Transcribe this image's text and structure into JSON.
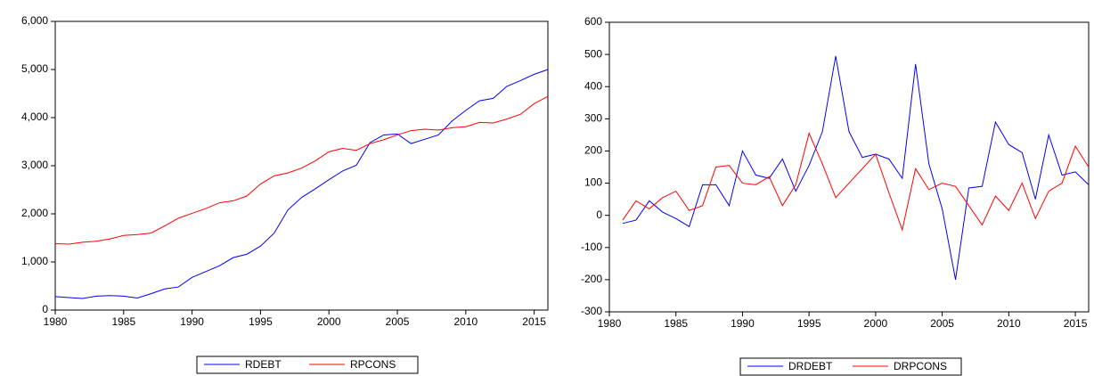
{
  "chart_data": [
    {
      "type": "line",
      "x": [
        1980,
        1981,
        1982,
        1983,
        1984,
        1985,
        1986,
        1987,
        1988,
        1989,
        1990,
        1991,
        1992,
        1993,
        1994,
        1995,
        1996,
        1997,
        1998,
        1999,
        2000,
        2001,
        2002,
        2003,
        2004,
        2005,
        2006,
        2007,
        2008,
        2009,
        2010,
        2011,
        2012,
        2013,
        2014,
        2015,
        2016
      ],
      "series": [
        {
          "name": "RDEBT",
          "color": "#0000ff",
          "values": [
            280,
            260,
            240,
            290,
            300,
            290,
            250,
            340,
            440,
            480,
            680,
            800,
            920,
            1090,
            1160,
            1330,
            1600,
            2080,
            2340,
            2520,
            2710,
            2890,
            3010,
            3480,
            3640,
            3660,
            3460,
            3550,
            3640,
            3930,
            4150,
            4350,
            4400,
            4650,
            4770,
            4900,
            5000
          ]
        },
        {
          "name": "RPCONS",
          "color": "#ff0000",
          "values": [
            1380,
            1370,
            1410,
            1430,
            1480,
            1550,
            1570,
            1600,
            1750,
            1910,
            2010,
            2110,
            2230,
            2270,
            2370,
            2620,
            2790,
            2850,
            2950,
            3100,
            3290,
            3360,
            3320,
            3460,
            3540,
            3640,
            3730,
            3760,
            3740,
            3790,
            3810,
            3900,
            3890,
            3970,
            4070,
            4290,
            4440
          ]
        }
      ],
      "xlim": [
        1980,
        2016
      ],
      "xticks": [
        1980,
        1985,
        1990,
        1995,
        2000,
        2005,
        2010,
        2015
      ],
      "ylim": [
        0,
        6000
      ],
      "yticks": [
        0,
        {
          "value": 1000,
          "label": "1,000"
        },
        {
          "value": 2000,
          "label": "2,000"
        },
        {
          "value": 3000,
          "label": "3,000"
        },
        {
          "value": 4000,
          "label": "4,000"
        },
        {
          "value": 5000,
          "label": "5,000"
        },
        {
          "value": 6000,
          "label": "6,000"
        }
      ],
      "grid": false
    },
    {
      "type": "line",
      "x": [
        1981,
        1982,
        1983,
        1984,
        1985,
        1986,
        1987,
        1988,
        1989,
        1990,
        1991,
        1992,
        1993,
        1994,
        1995,
        1996,
        1997,
        1998,
        1999,
        2000,
        2001,
        2002,
        2003,
        2004,
        2005,
        2006,
        2007,
        2008,
        2009,
        2010,
        2011,
        2012,
        2013,
        2014,
        2015,
        2016
      ],
      "series": [
        {
          "name": "DRDEBT",
          "color": "#0000ff",
          "values": [
            -25,
            -15,
            45,
            10,
            -10,
            -35,
            95,
            95,
            30,
            200,
            125,
            115,
            175,
            75,
            155,
            260,
            495,
            260,
            180,
            190,
            175,
            115,
            470,
            160,
            20,
            -200,
            85,
            90,
            290,
            220,
            195,
            50,
            250,
            125,
            135,
            95
          ]
        },
        {
          "name": "DRPCONS",
          "color": "#ff0000",
          "values": [
            -15,
            45,
            20,
            55,
            75,
            15,
            30,
            150,
            155,
            100,
            95,
            120,
            30,
            95,
            255,
            160,
            55,
            100,
            145,
            190,
            70,
            -45,
            145,
            80,
            100,
            90,
            30,
            -30,
            60,
            15,
            100,
            -10,
            75,
            100,
            215,
            150
          ]
        }
      ],
      "xlim": [
        1980,
        2016
      ],
      "xticks": [
        1980,
        1985,
        1990,
        1995,
        2000,
        2005,
        2010,
        2015
      ],
      "ylim": [
        -300,
        600
      ],
      "yticks": [
        -300,
        -200,
        -100,
        0,
        100,
        200,
        300,
        400,
        500,
        600
      ],
      "grid": false
    }
  ]
}
